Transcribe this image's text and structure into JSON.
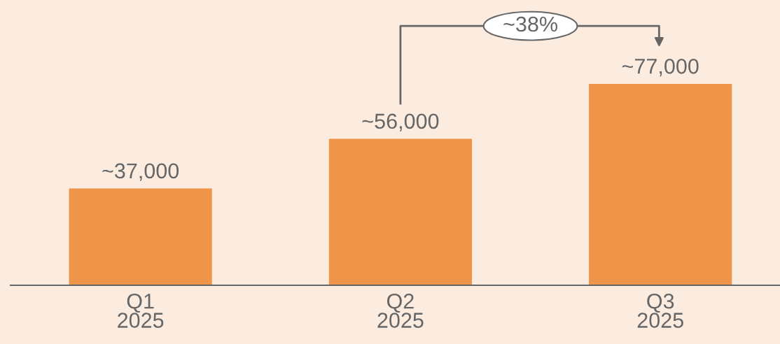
{
  "chart_data": {
    "type": "bar",
    "categories": [
      "Q1\n2025",
      "Q2\n2025",
      "Q3\n2025"
    ],
    "values": [
      37000,
      56000,
      77000
    ],
    "value_labels": [
      "~37,000",
      "~56,000",
      "~77,000"
    ],
    "color": "#ee9549",
    "annotations": [
      "~38%"
    ],
    "grid": false,
    "legend": false
  }
}
